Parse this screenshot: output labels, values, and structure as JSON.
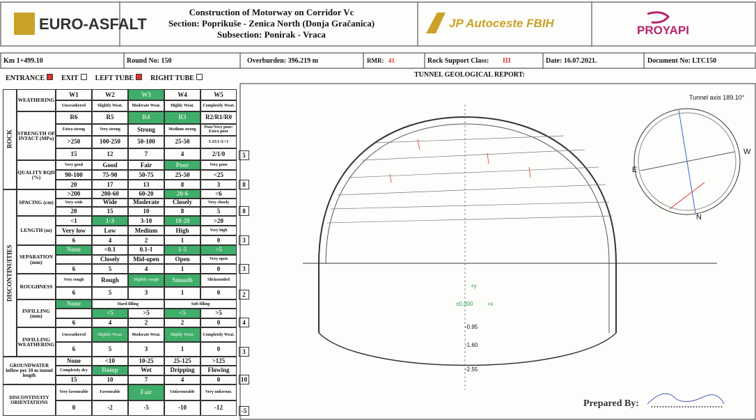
{
  "header": {
    "logo": "EURO-ASFALT",
    "title_lines": [
      "Construction of Motorway on Corridor Vc",
      "Section: Poprikuše - Zenica North (Donja Gračanica)",
      "Subsection: Ponirak - Vraca"
    ],
    "client": "JP Autoceste FBIH",
    "consultant": "PROYAPI"
  },
  "info": {
    "km": "Km 1+499.10",
    "round": "Round No: 150",
    "overburden": "Overburden: 396.219 m",
    "rmr_label": "RMR:",
    "rmr": "41",
    "class_label": "Rock Support Class:",
    "class": "III",
    "date": "Date: 16.07.2021.",
    "document": "Document No: LTC150"
  },
  "tubes": [
    {
      "label": "ENTRANCE",
      "checked": true
    },
    {
      "label": "EXIT",
      "checked": false
    },
    {
      "label": "LEFT TUBE",
      "checked": true
    },
    {
      "label": "RIGHT TUBE",
      "checked": false
    }
  ],
  "report_title": "TUNNEL GEOLOGICAL REPORT:",
  "table": {
    "groups": [
      "ROCK",
      "DISCONTINUITIES"
    ],
    "rows": [
      {
        "label": "WEATHERING",
        "lines": [
          [
            "W1",
            "W2",
            "W3",
            "W4",
            "W5"
          ],
          [
            "Unweathered",
            "Slightly Weat.",
            "Moderate Weat.",
            "Highly Weat.",
            "Completely Weat."
          ]
        ],
        "highlight": [
          [
            0,
            2
          ]
        ]
      },
      {
        "label": "STRENGTH OF INTACT (MPa)",
        "lines": [
          [
            "R6",
            "R5",
            "R4",
            "R3",
            "R2/R1/R0"
          ],
          [
            "Extra strong",
            "Very strong",
            "Strong",
            "Medium strong",
            "Poor/Very poor/ Extra poor"
          ],
          [
            ">250",
            "100-250",
            "50-100",
            "25-50",
            "5-25/1-5/<1"
          ]
        ],
        "points": [
          15,
          12,
          7,
          4,
          "2/1/0"
        ],
        "score": 5,
        "highlight": [
          [
            0,
            2
          ],
          [
            0,
            3
          ]
        ]
      },
      {
        "label": "QUALITY RQD (%)",
        "lines": [
          [
            "Very good",
            "Good",
            "Fair",
            "Poor",
            "Very poor"
          ],
          [
            "90-100",
            "75-90",
            "50-75",
            "25-50",
            "<25"
          ]
        ],
        "points": [
          20,
          17,
          13,
          8,
          3
        ],
        "score": 8,
        "highlight": [
          [
            0,
            3
          ]
        ]
      },
      {
        "label": "SPACING (cm)",
        "lines": [
          [
            ">200",
            "200-60",
            "60-20",
            "20-6",
            "<6"
          ],
          [
            "Very wide",
            "Wide",
            "Moderate",
            "Closely",
            "Very closely"
          ]
        ],
        "points": [
          20,
          15,
          10,
          8,
          5
        ],
        "score": 8,
        "highlight": [
          [
            0,
            3
          ]
        ]
      },
      {
        "label": "LENGTH (m)",
        "lines": [
          [
            "<1",
            "1-3",
            "3-10",
            "10-20",
            ">20"
          ],
          [
            "Very low",
            "Low",
            "Medium",
            "High",
            "Very high"
          ]
        ],
        "points": [
          6,
          4,
          2,
          1,
          0
        ],
        "score": 3,
        "highlight": [
          [
            0,
            1
          ],
          [
            0,
            3
          ]
        ]
      },
      {
        "label": "SEPARATION (mm)",
        "lines": [
          [
            "None",
            "<0.1",
            "0.1-1",
            "1-5",
            ">5"
          ],
          [
            null,
            "Closely",
            "Mid-open",
            "Open",
            "Very open"
          ]
        ],
        "points": [
          6,
          5,
          4,
          1,
          0
        ],
        "score": 3,
        "highlight": [
          [
            0,
            0
          ],
          [
            0,
            3
          ],
          [
            0,
            4
          ]
        ]
      },
      {
        "label": "ROUGHNESS",
        "lines": [
          [
            "Very rough",
            "Rough",
            "Slightly rough",
            "Smooth",
            "Slickensided"
          ]
        ],
        "points": [
          6,
          5,
          3,
          1,
          0
        ],
        "score": 2,
        "highlight": [
          [
            0,
            2
          ],
          [
            0,
            3
          ]
        ]
      },
      {
        "label": "INFILLING (mm)",
        "lines": [
          [
            "None",
            "Hard filling",
            "Soft filling"
          ],
          [
            null,
            "<5",
            ">5",
            "<5",
            ">5"
          ]
        ],
        "points": [
          6,
          4,
          2,
          2,
          0
        ],
        "score": 4,
        "highlight": [
          [
            0,
            0
          ],
          [
            1,
            1
          ],
          [
            1,
            3
          ]
        ]
      },
      {
        "label": "INFILLING WEATHERING",
        "lines": [
          [
            "Unweathered",
            "Slightly Weat.",
            "Moderate Weat.",
            "Highly Weat.",
            "Completely Weat."
          ]
        ],
        "points": [
          6,
          5,
          3,
          1,
          0
        ],
        "score": 3,
        "highlight": [
          [
            0,
            1
          ],
          [
            0,
            3
          ]
        ]
      },
      {
        "label": "GROUNDWATER inflow per 10 m tunnel length",
        "lines": [
          [
            "None",
            "<10",
            "10-25",
            "25-125",
            ">125"
          ],
          [
            "Completely dry",
            "Damp",
            "Wet",
            "Dripping",
            "Flowing"
          ]
        ],
        "points": [
          15,
          10,
          7,
          4,
          0
        ],
        "score": 10,
        "highlight": [
          [
            1,
            1
          ]
        ]
      },
      {
        "label": "DISCONTINUITY ORIENTATIONS",
        "lines": [
          [
            "Very favourable",
            "Favourable",
            "Fair",
            "Unfavourable",
            "Very unfavour."
          ]
        ],
        "points": [
          0,
          -2,
          -5,
          -10,
          -12
        ],
        "score": -5,
        "highlight": [
          [
            0,
            2
          ]
        ]
      }
    ]
  },
  "drawing": {
    "axis": "Tunnel axis 189.10°",
    "east": "E",
    "west": "W",
    "north": "N",
    "plus_y": "+y",
    "origin": "±0.000",
    "plus_x": "+x",
    "levels": [
      "-0.95",
      "-1.60",
      "-2.55"
    ]
  },
  "prepared_by": "Prepared By:"
}
